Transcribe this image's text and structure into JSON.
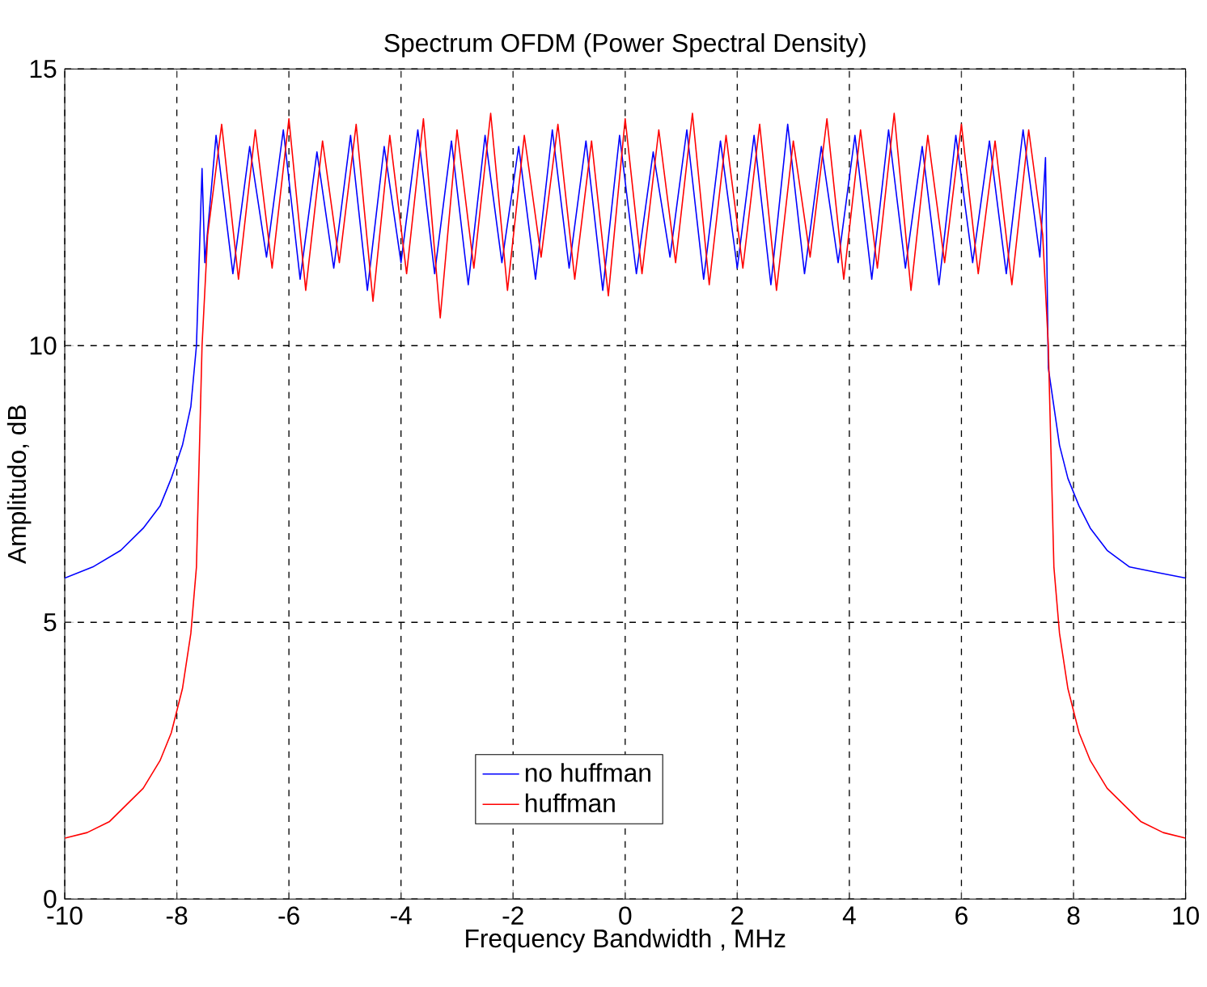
{
  "chart_data": {
    "type": "line",
    "title": "Spectrum OFDM (Power Spectral Density)",
    "xlabel": "Frequency Bandwidth , MHz",
    "ylabel": "Amplitudo, dB",
    "xlim": [
      -10,
      10
    ],
    "ylim": [
      0,
      15
    ],
    "xticks": [
      -10,
      -8,
      -6,
      -4,
      -2,
      0,
      2,
      4,
      6,
      8,
      10
    ],
    "yticks": [
      0,
      5,
      10,
      15
    ],
    "grid": true,
    "legend": "bottom",
    "line_style": "solid",
    "marker": "none",
    "series": [
      {
        "name": "no huffman",
        "color": "#0000ff",
        "x": [
          -10,
          -9.5,
          -9,
          -8.6,
          -8.3,
          -8.1,
          -7.9,
          -7.75,
          -7.65,
          -7.55,
          -7.5,
          -7.3,
          -7.0,
          -6.7,
          -6.4,
          -6.1,
          -5.8,
          -5.5,
          -5.2,
          -4.9,
          -4.6,
          -4.3,
          -4.0,
          -3.7,
          -3.4,
          -3.1,
          -2.8,
          -2.5,
          -2.2,
          -1.9,
          -1.6,
          -1.3,
          -1.0,
          -0.7,
          -0.4,
          -0.1,
          0.2,
          0.5,
          0.8,
          1.1,
          1.4,
          1.7,
          2.0,
          2.3,
          2.6,
          2.9,
          3.2,
          3.5,
          3.8,
          4.1,
          4.4,
          4.7,
          5.0,
          5.3,
          5.6,
          5.9,
          6.2,
          6.5,
          6.8,
          7.1,
          7.4,
          7.5,
          7.55,
          7.65,
          7.75,
          7.9,
          8.1,
          8.3,
          8.6,
          9,
          9.5,
          10
        ],
        "values": [
          5.8,
          6.0,
          6.3,
          6.7,
          7.1,
          7.6,
          8.2,
          8.9,
          10.0,
          13.2,
          11.5,
          13.8,
          11.3,
          13.6,
          11.6,
          13.9,
          11.2,
          13.5,
          11.4,
          13.8,
          11.0,
          13.6,
          11.5,
          13.9,
          11.3,
          13.7,
          11.1,
          13.8,
          11.5,
          13.6,
          11.2,
          13.9,
          11.4,
          13.7,
          11.0,
          13.8,
          11.3,
          13.5,
          11.6,
          13.9,
          11.2,
          13.7,
          11.4,
          13.8,
          11.1,
          14.0,
          11.3,
          13.6,
          11.5,
          13.8,
          11.2,
          13.9,
          11.4,
          13.6,
          11.1,
          13.8,
          11.5,
          13.7,
          11.3,
          13.9,
          11.6,
          13.4,
          9.6,
          8.9,
          8.2,
          7.6,
          7.1,
          6.7,
          6.3,
          6.0,
          5.9,
          5.8
        ]
      },
      {
        "name": "huffman",
        "color": "#ff0000",
        "x": [
          -10,
          -9.6,
          -9.2,
          -8.9,
          -8.6,
          -8.3,
          -8.1,
          -7.9,
          -7.75,
          -7.65,
          -7.55,
          -7.45,
          -7.2,
          -6.9,
          -6.6,
          -6.3,
          -6.0,
          -5.7,
          -5.4,
          -5.1,
          -4.8,
          -4.5,
          -4.2,
          -3.9,
          -3.6,
          -3.3,
          -3.0,
          -2.7,
          -2.4,
          -2.1,
          -1.8,
          -1.5,
          -1.2,
          -0.9,
          -0.6,
          -0.3,
          0.0,
          0.3,
          0.6,
          0.9,
          1.2,
          1.5,
          1.8,
          2.1,
          2.4,
          2.7,
          3.0,
          3.3,
          3.6,
          3.9,
          4.2,
          4.5,
          4.8,
          5.1,
          5.4,
          5.7,
          6.0,
          6.3,
          6.6,
          6.9,
          7.2,
          7.45,
          7.55,
          7.65,
          7.75,
          7.9,
          8.1,
          8.3,
          8.6,
          8.9,
          9.2,
          9.6,
          10
        ],
        "values": [
          1.1,
          1.2,
          1.4,
          1.7,
          2.0,
          2.5,
          3.0,
          3.8,
          4.8,
          6.0,
          10.0,
          12.0,
          14.0,
          11.2,
          13.9,
          11.4,
          14.1,
          11.0,
          13.7,
          11.5,
          14.0,
          10.8,
          13.8,
          11.3,
          14.1,
          10.5,
          13.9,
          11.4,
          14.2,
          11.0,
          13.8,
          11.6,
          14.0,
          11.2,
          13.7,
          10.9,
          14.1,
          11.3,
          13.9,
          11.5,
          14.2,
          11.1,
          13.8,
          11.4,
          14.0,
          11.0,
          13.7,
          11.6,
          14.1,
          11.2,
          13.9,
          11.4,
          14.2,
          11.0,
          13.8,
          11.5,
          14.0,
          11.3,
          13.7,
          11.1,
          13.9,
          12.0,
          10.0,
          6.0,
          4.8,
          3.8,
          3.0,
          2.5,
          2.0,
          1.7,
          1.4,
          1.2,
          1.1
        ]
      }
    ]
  }
}
